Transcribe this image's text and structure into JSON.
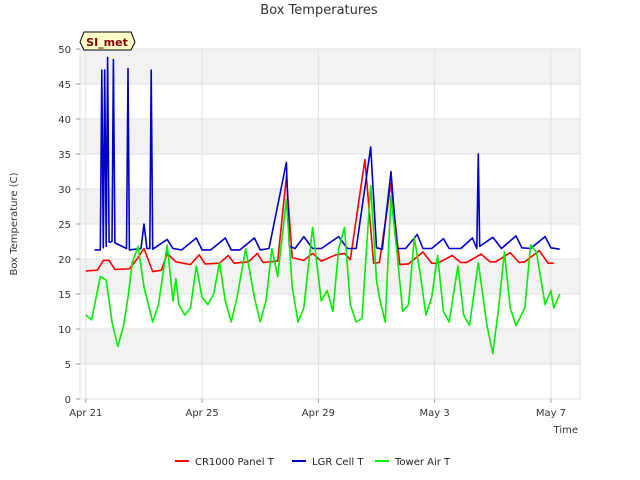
{
  "chart_data": {
    "type": "line",
    "title": "Box Temperatures",
    "xlabel": "Time",
    "ylabel": "Box Temperature (C)",
    "site_label": "SI_met",
    "ylim": [
      0,
      50
    ],
    "yticks": [
      0,
      5,
      10,
      15,
      20,
      25,
      30,
      35,
      40,
      45,
      50
    ],
    "xlim": [
      -0.2,
      17.0
    ],
    "xticks": [
      {
        "value": 0,
        "label": "Apr 21"
      },
      {
        "value": 4,
        "label": "Apr 25"
      },
      {
        "value": 8,
        "label": "Apr 29"
      },
      {
        "value": 12,
        "label": "May 3"
      },
      {
        "value": 16,
        "label": "May 7"
      }
    ],
    "grid": true,
    "legend_position": "bottom-center",
    "series": [
      {
        "name": "CR1000 Panel T",
        "color": "#ff0000",
        "x": [
          0.0,
          0.4,
          0.6,
          0.8,
          1.0,
          1.5,
          1.8,
          2.0,
          2.3,
          2.6,
          2.8,
          3.1,
          3.6,
          3.9,
          4.1,
          4.6,
          4.9,
          5.1,
          5.6,
          5.9,
          6.1,
          6.6,
          6.9,
          7.1,
          7.5,
          7.8,
          8.1,
          8.6,
          8.9,
          9.1,
          9.6,
          9.9,
          10.1,
          10.5,
          10.8,
          11.1,
          11.6,
          11.9,
          12.1,
          12.6,
          12.9,
          13.1,
          13.6,
          13.9,
          14.1,
          14.6,
          14.9,
          15.1,
          15.6,
          15.9,
          16.1
        ],
        "y": [
          18.3,
          18.4,
          19.8,
          19.8,
          18.5,
          18.6,
          20.2,
          21.5,
          18.2,
          18.4,
          20.8,
          19.6,
          19.2,
          20.6,
          19.3,
          19.4,
          20.5,
          19.4,
          19.6,
          20.8,
          19.5,
          19.7,
          31.8,
          20.2,
          19.8,
          20.8,
          19.7,
          20.6,
          20.8,
          19.9,
          34.2,
          19.4,
          19.5,
          30.8,
          19.2,
          19.3,
          21.0,
          19.4,
          19.4,
          20.5,
          19.5,
          19.5,
          20.7,
          19.6,
          19.6,
          20.9,
          19.5,
          19.6,
          21.2,
          19.4,
          19.4
        ]
      },
      {
        "name": "LGR Cell T",
        "color": "#0000cc",
        "x": [
          0.3,
          0.5,
          0.55,
          0.6,
          0.65,
          0.7,
          0.75,
          0.8,
          0.9,
          0.95,
          1.0,
          1.4,
          1.45,
          1.5,
          1.9,
          2.0,
          2.1,
          2.2,
          2.25,
          2.3,
          2.8,
          3.0,
          3.3,
          3.8,
          4.0,
          4.3,
          4.8,
          5.0,
          5.3,
          5.8,
          6.0,
          6.3,
          6.9,
          7.0,
          7.2,
          7.5,
          7.8,
          8.1,
          8.7,
          9.0,
          9.3,
          9.8,
          10.0,
          10.2,
          10.5,
          10.7,
          11.0,
          11.4,
          11.6,
          11.9,
          12.3,
          12.5,
          12.9,
          13.3,
          13.45,
          13.5,
          13.55,
          14.0,
          14.3,
          14.8,
          15.0,
          15.3,
          15.8,
          16.0,
          16.3
        ],
        "y": [
          21.3,
          21.3,
          47.0,
          21.6,
          47.0,
          21.8,
          48.8,
          22.4,
          22.5,
          48.5,
          22.3,
          21.5,
          47.2,
          21.3,
          21.5,
          25.0,
          21.5,
          21.5,
          47.0,
          21.4,
          22.8,
          21.5,
          21.3,
          23.0,
          21.3,
          21.3,
          23.0,
          21.3,
          21.3,
          23.0,
          21.3,
          21.5,
          33.8,
          21.8,
          21.5,
          23.2,
          21.5,
          21.5,
          23.2,
          21.5,
          21.5,
          36.0,
          21.6,
          21.4,
          32.5,
          21.5,
          21.5,
          23.5,
          21.5,
          21.5,
          22.9,
          21.5,
          21.5,
          23.0,
          21.5,
          35.0,
          21.8,
          23.1,
          21.5,
          23.3,
          21.6,
          21.5,
          23.2,
          21.6,
          21.4
        ]
      },
      {
        "name": "Tower Air T",
        "color": "#00ee00",
        "x": [
          0.0,
          0.2,
          0.5,
          0.7,
          0.9,
          1.1,
          1.3,
          1.45,
          1.6,
          1.8,
          2.0,
          2.3,
          2.5,
          2.8,
          3.0,
          3.1,
          3.2,
          3.4,
          3.6,
          3.8,
          4.0,
          4.2,
          4.4,
          4.6,
          4.8,
          5.0,
          5.2,
          5.5,
          5.8,
          6.0,
          6.2,
          6.4,
          6.6,
          6.9,
          7.1,
          7.3,
          7.5,
          7.8,
          8.1,
          8.3,
          8.5,
          8.7,
          8.9,
          9.1,
          9.3,
          9.5,
          9.8,
          10.0,
          10.1,
          10.3,
          10.5,
          10.7,
          10.9,
          11.1,
          11.3,
          11.5,
          11.7,
          11.9,
          12.1,
          12.3,
          12.5,
          12.8,
          13.0,
          13.2,
          13.5,
          13.8,
          14.0,
          14.2,
          14.4,
          14.6,
          14.8,
          15.1,
          15.3,
          15.5,
          15.8,
          16.0,
          16.1,
          16.3
        ],
        "y": [
          12.0,
          11.3,
          17.5,
          17.0,
          11.0,
          7.5,
          10.5,
          14.5,
          19.5,
          21.8,
          16.0,
          11.0,
          13.5,
          22.0,
          14.0,
          17.2,
          13.5,
          12.0,
          13.0,
          19.0,
          14.5,
          13.5,
          15.0,
          19.5,
          14.0,
          11.0,
          14.5,
          21.5,
          14.5,
          11.0,
          14.0,
          21.5,
          17.5,
          28.5,
          16.0,
          11.0,
          13.0,
          24.5,
          14.0,
          15.5,
          12.5,
          21.5,
          24.5,
          13.5,
          11.0,
          11.5,
          30.5,
          17.0,
          14.5,
          11.0,
          29.0,
          21.0,
          12.5,
          13.5,
          23.0,
          18.0,
          12.0,
          14.5,
          20.5,
          12.5,
          11.0,
          19.0,
          12.0,
          10.5,
          19.5,
          10.5,
          6.5,
          13.0,
          21.0,
          13.0,
          10.5,
          13.0,
          22.0,
          21.0,
          13.5,
          15.5,
          13.0,
          15.0
        ]
      }
    ]
  }
}
